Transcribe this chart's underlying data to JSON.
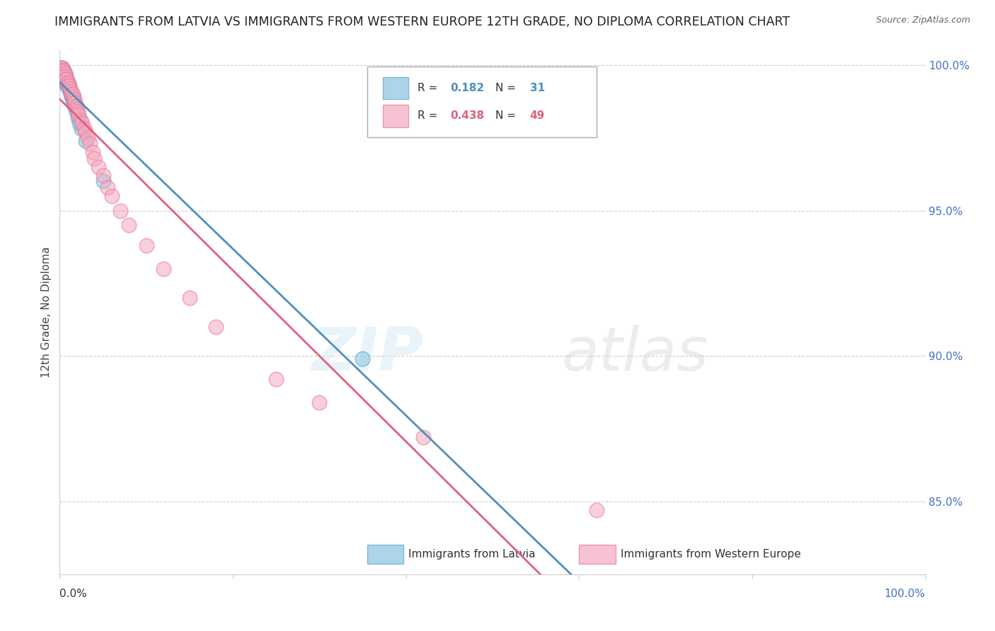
{
  "title": "IMMIGRANTS FROM LATVIA VS IMMIGRANTS FROM WESTERN EUROPE 12TH GRADE, NO DIPLOMA CORRELATION CHART",
  "source": "Source: ZipAtlas.com",
  "ylabel": "12th Grade, No Diploma",
  "R_blue": 0.182,
  "N_blue": 31,
  "R_pink": 0.438,
  "N_pink": 49,
  "blue_color": "#89c4e1",
  "blue_edge_color": "#5ba3c9",
  "blue_line_color": "#4d8fbf",
  "pink_color": "#f4a8be",
  "pink_edge_color": "#e87aa0",
  "pink_line_color": "#e0607e",
  "legend_label_blue": "Immigrants from Latvia",
  "legend_label_pink": "Immigrants from Western Europe",
  "watermark_zip": "ZIP",
  "watermark_atlas": "atlas",
  "background_color": "#ffffff",
  "grid_color": "#bbbbbb",
  "y_tick_color": "#4472C4",
  "title_fontsize": 12.5,
  "source_fontsize": 9,
  "tick_fontsize": 11,
  "ylabel_fontsize": 11,
  "legend_fontsize": 11,
  "blue_x": [
    0.001,
    0.002,
    0.002,
    0.003,
    0.003,
    0.004,
    0.004,
    0.005,
    0.005,
    0.006,
    0.006,
    0.007,
    0.007,
    0.008,
    0.008,
    0.009,
    0.01,
    0.011,
    0.012,
    0.013,
    0.014,
    0.015,
    0.016,
    0.017,
    0.019,
    0.021,
    0.023,
    0.025,
    0.03,
    0.05,
    0.35
  ],
  "blue_y": [
    0.999,
    0.998,
    0.997,
    0.999,
    0.998,
    0.997,
    0.996,
    0.998,
    0.996,
    0.997,
    0.995,
    0.996,
    0.994,
    0.995,
    0.993,
    0.994,
    0.993,
    0.992,
    0.991,
    0.99,
    0.989,
    0.988,
    0.987,
    0.986,
    0.984,
    0.982,
    0.98,
    0.978,
    0.974,
    0.96,
    0.899
  ],
  "pink_x": [
    0.001,
    0.002,
    0.002,
    0.003,
    0.003,
    0.004,
    0.005,
    0.005,
    0.006,
    0.007,
    0.007,
    0.008,
    0.009,
    0.01,
    0.01,
    0.011,
    0.012,
    0.013,
    0.014,
    0.015,
    0.016,
    0.017,
    0.018,
    0.019,
    0.02,
    0.021,
    0.022,
    0.024,
    0.026,
    0.028,
    0.03,
    0.032,
    0.035,
    0.038,
    0.04,
    0.045,
    0.05,
    0.055,
    0.06,
    0.07,
    0.08,
    0.1,
    0.12,
    0.15,
    0.18,
    0.25,
    0.3,
    0.42,
    0.62
  ],
  "pink_y": [
    0.999,
    0.998,
    0.997,
    0.999,
    0.998,
    0.997,
    0.998,
    0.996,
    0.997,
    0.996,
    0.995,
    0.995,
    0.994,
    0.994,
    0.993,
    0.993,
    0.992,
    0.991,
    0.99,
    0.99,
    0.989,
    0.988,
    0.987,
    0.986,
    0.985,
    0.984,
    0.983,
    0.981,
    0.98,
    0.978,
    0.977,
    0.975,
    0.973,
    0.97,
    0.968,
    0.965,
    0.962,
    0.958,
    0.955,
    0.95,
    0.945,
    0.938,
    0.93,
    0.92,
    0.91,
    0.892,
    0.884,
    0.872,
    0.847
  ],
  "x_lim": [
    0.0,
    1.0
  ],
  "y_lim": [
    0.825,
    1.005
  ],
  "y_ticks": [
    0.85,
    0.9,
    0.95,
    1.0
  ],
  "y_tick_labels": [
    "85.0%",
    "90.0%",
    "95.0%",
    "100.0%"
  ]
}
